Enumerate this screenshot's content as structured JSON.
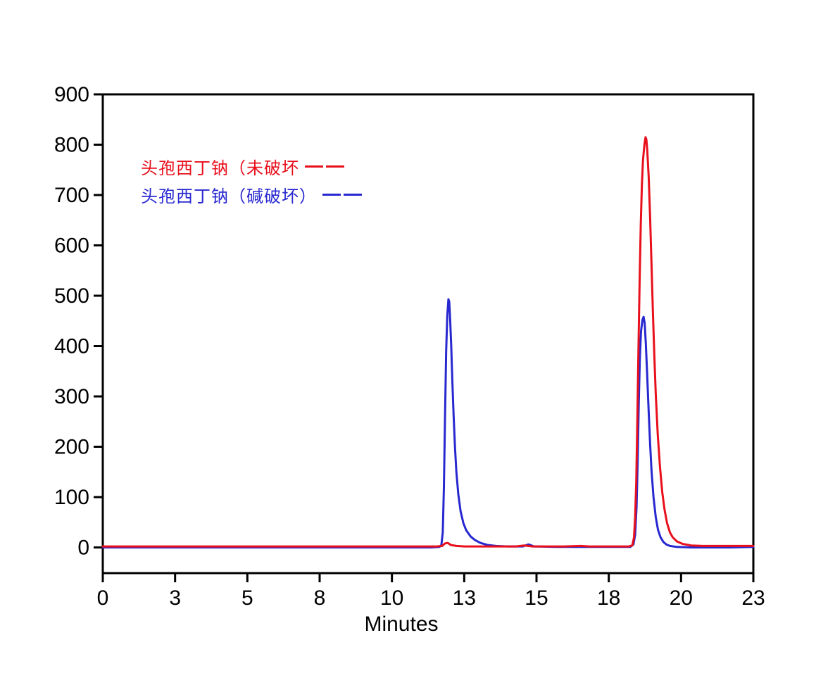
{
  "chart_data": {
    "type": "line",
    "title": "",
    "xlabel": "Minutes",
    "ylabel": "",
    "grid": false,
    "legend_position": "upper-left-inside",
    "frame_color": "#000000",
    "background_color": "#ffffff",
    "x_axis": {
      "min": 0,
      "max": 23,
      "tick_positions": [
        0,
        2.556,
        5.111,
        7.667,
        10.222,
        12.778,
        15.333,
        17.889,
        20.444,
        23
      ],
      "tick_labels": [
        "0",
        "3",
        "5",
        "8",
        "10",
        "13",
        "15",
        "18",
        "20",
        "23"
      ]
    },
    "y_axis": {
      "min": -51,
      "max": 900,
      "tick_positions": [
        0,
        100,
        200,
        300,
        400,
        500,
        600,
        700,
        800,
        900
      ],
      "tick_labels": [
        "0",
        "100",
        "200",
        "300",
        "400",
        "500",
        "600",
        "700",
        "800",
        "900"
      ]
    },
    "series": [
      {
        "name": "头孢西丁钠（碱破坏）",
        "color": "#2828d0",
        "peak_retention_minutes": [
          12.22,
          19.12
        ],
        "peak_heights": [
          493,
          458
        ],
        "points": [
          [
            0,
            0
          ],
          [
            1,
            0
          ],
          [
            2,
            0
          ],
          [
            3,
            0
          ],
          [
            4,
            0
          ],
          [
            5,
            0
          ],
          [
            6,
            0
          ],
          [
            7,
            0
          ],
          [
            8,
            0
          ],
          [
            9,
            0
          ],
          [
            10,
            0
          ],
          [
            11,
            0
          ],
          [
            11.6,
            0
          ],
          [
            11.9,
            1
          ],
          [
            11.97,
            5
          ],
          [
            12.02,
            30
          ],
          [
            12.06,
            120
          ],
          [
            12.1,
            260
          ],
          [
            12.14,
            390
          ],
          [
            12.18,
            460
          ],
          [
            12.22,
            493
          ],
          [
            12.25,
            488
          ],
          [
            12.28,
            455
          ],
          [
            12.32,
            400
          ],
          [
            12.36,
            330
          ],
          [
            12.4,
            265
          ],
          [
            12.45,
            200
          ],
          [
            12.5,
            150
          ],
          [
            12.57,
            105
          ],
          [
            12.65,
            72
          ],
          [
            12.75,
            48
          ],
          [
            12.85,
            34
          ],
          [
            13.0,
            22
          ],
          [
            13.15,
            15
          ],
          [
            13.35,
            9
          ],
          [
            13.6,
            5
          ],
          [
            13.9,
            3
          ],
          [
            14.3,
            2
          ],
          [
            14.85,
            2
          ],
          [
            15.05,
            6
          ],
          [
            15.25,
            2
          ],
          [
            16.0,
            1
          ],
          [
            16.5,
            1
          ],
          [
            17.0,
            1
          ],
          [
            18.0,
            1
          ],
          [
            18.65,
            1
          ],
          [
            18.76,
            6
          ],
          [
            18.82,
            25
          ],
          [
            18.87,
            80
          ],
          [
            18.91,
            170
          ],
          [
            18.95,
            290
          ],
          [
            18.99,
            380
          ],
          [
            19.03,
            430
          ],
          [
            19.08,
            452
          ],
          [
            19.12,
            458
          ],
          [
            19.16,
            445
          ],
          [
            19.2,
            405
          ],
          [
            19.25,
            340
          ],
          [
            19.3,
            268
          ],
          [
            19.35,
            205
          ],
          [
            19.4,
            152
          ],
          [
            19.47,
            100
          ],
          [
            19.55,
            60
          ],
          [
            19.63,
            35
          ],
          [
            19.72,
            20
          ],
          [
            19.82,
            11
          ],
          [
            19.92,
            6
          ],
          [
            20.05,
            3
          ],
          [
            20.3,
            1
          ],
          [
            20.8,
            0
          ],
          [
            21.5,
            0
          ],
          [
            22.2,
            0
          ],
          [
            23,
            1
          ]
        ]
      },
      {
        "name": "头孢西丁钠（未破坏",
        "color": "#e8101c",
        "peak_retention_minutes": [
          19.19
        ],
        "peak_heights": [
          815
        ],
        "points": [
          [
            0,
            2
          ],
          [
            1,
            2
          ],
          [
            2,
            2
          ],
          [
            3,
            2
          ],
          [
            4,
            2
          ],
          [
            5,
            2
          ],
          [
            6,
            2
          ],
          [
            7,
            2
          ],
          [
            8,
            2
          ],
          [
            9,
            2
          ],
          [
            10,
            2
          ],
          [
            11,
            2
          ],
          [
            11.8,
            2
          ],
          [
            12.0,
            3
          ],
          [
            12.1,
            8
          ],
          [
            12.2,
            9
          ],
          [
            12.3,
            5
          ],
          [
            12.5,
            3
          ],
          [
            12.8,
            2
          ],
          [
            13.5,
            2
          ],
          [
            14.6,
            2
          ],
          [
            14.9,
            4
          ],
          [
            15.2,
            2
          ],
          [
            16.3,
            2
          ],
          [
            16.9,
            3
          ],
          [
            17.2,
            2
          ],
          [
            18.6,
            2
          ],
          [
            18.72,
            4
          ],
          [
            18.78,
            20
          ],
          [
            18.82,
            60
          ],
          [
            18.86,
            130
          ],
          [
            18.9,
            260
          ],
          [
            18.94,
            400
          ],
          [
            18.98,
            530
          ],
          [
            19.02,
            640
          ],
          [
            19.06,
            720
          ],
          [
            19.1,
            770
          ],
          [
            19.15,
            800
          ],
          [
            19.19,
            815
          ],
          [
            19.22,
            810
          ],
          [
            19.25,
            790
          ],
          [
            19.3,
            735
          ],
          [
            19.35,
            655
          ],
          [
            19.4,
            560
          ],
          [
            19.45,
            465
          ],
          [
            19.5,
            380
          ],
          [
            19.55,
            305
          ],
          [
            19.62,
            225
          ],
          [
            19.7,
            160
          ],
          [
            19.78,
            110
          ],
          [
            19.86,
            75
          ],
          [
            19.95,
            48
          ],
          [
            20.05,
            30
          ],
          [
            20.15,
            20
          ],
          [
            20.3,
            12
          ],
          [
            20.5,
            7
          ],
          [
            20.8,
            4
          ],
          [
            21.2,
            3
          ],
          [
            21.8,
            3
          ],
          [
            22.4,
            3
          ],
          [
            23,
            3
          ]
        ]
      }
    ]
  },
  "legend": {
    "items": [
      {
        "label": "头孢西丁钠（未破坏",
        "series_index": 1
      },
      {
        "label": "头孢西丁钠（碱破坏）",
        "series_index": 0
      }
    ]
  }
}
